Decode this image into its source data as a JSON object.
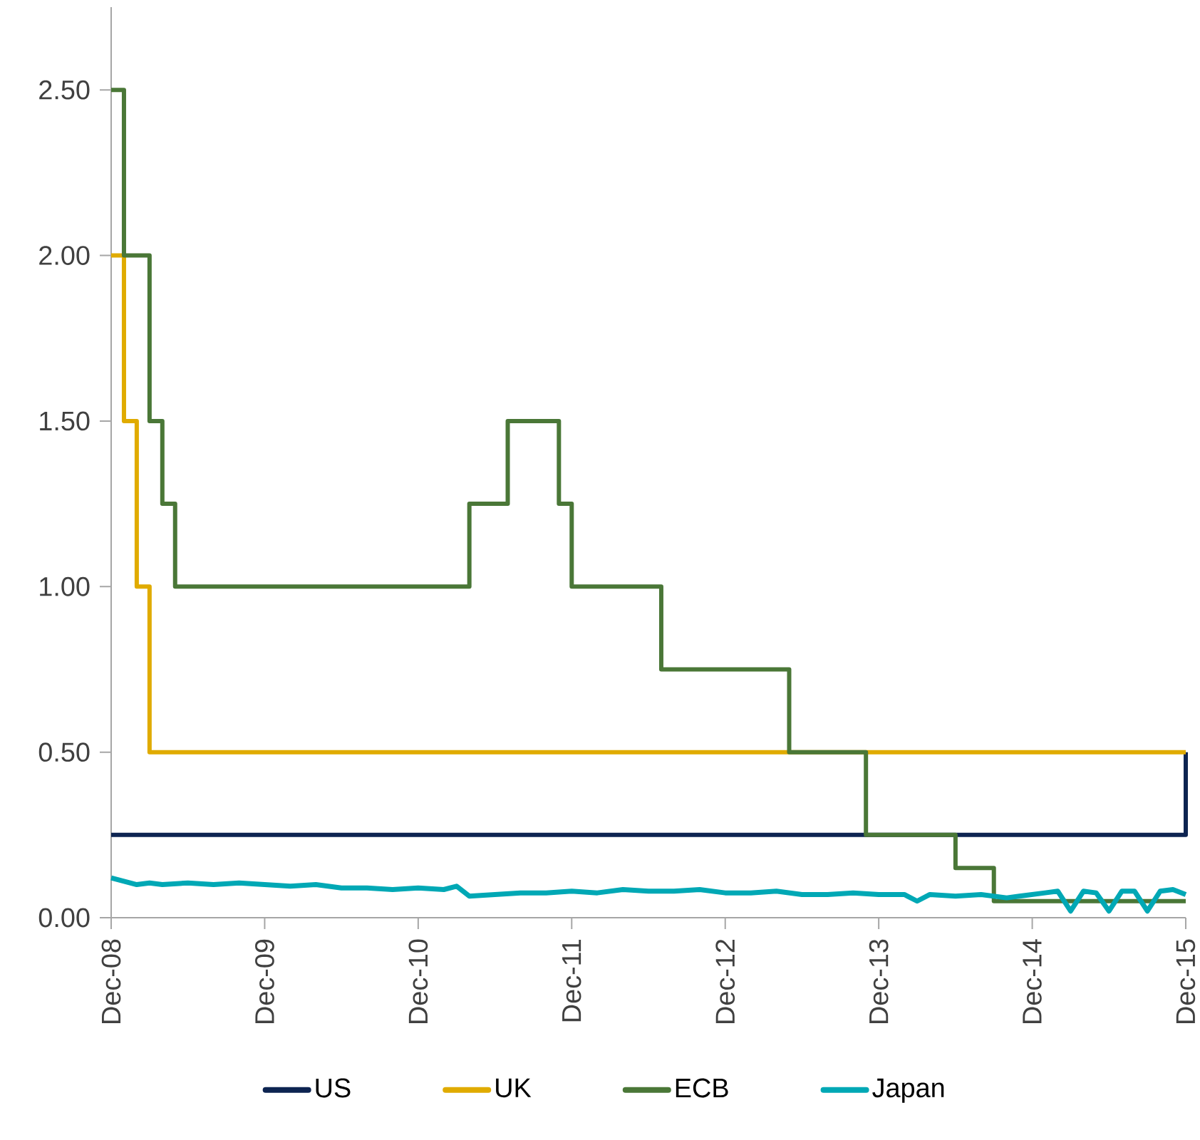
{
  "chart_data": {
    "type": "line",
    "xlim": [
      "2008-12",
      "2015-12"
    ],
    "xticks": [
      {
        "value": "2008-12",
        "label": "Dec-08"
      },
      {
        "value": "2009-12",
        "label": "Dec-09"
      },
      {
        "value": "2010-12",
        "label": "Dec-10"
      },
      {
        "value": "2011-12",
        "label": "Dec-11"
      },
      {
        "value": "2012-12",
        "label": "Dec-12"
      },
      {
        "value": "2013-12",
        "label": "Dec-13"
      },
      {
        "value": "2014-12",
        "label": "Dec-14"
      },
      {
        "value": "2015-12",
        "label": "Dec-15"
      }
    ],
    "ylim": [
      0,
      2.75
    ],
    "yticks": [
      {
        "value": 0,
        "label": "0.00"
      },
      {
        "value": 0.5,
        "label": "0.50"
      },
      {
        "value": 1.0,
        "label": "1.00"
      },
      {
        "value": 1.5,
        "label": "1.50"
      },
      {
        "value": 2.0,
        "label": "2.00"
      },
      {
        "value": 2.5,
        "label": "2.50"
      }
    ],
    "legend": "bottom",
    "marker": "none",
    "series": [
      {
        "name": "US",
        "color": "#0d2451",
        "type": "step",
        "x": [
          "2008-12",
          "2015-12"
        ],
        "values": [
          0.25,
          0.5
        ]
      },
      {
        "name": "UK",
        "color": "#e0ab00",
        "type": "step",
        "x": [
          "2008-12",
          "2009-01",
          "2009-02",
          "2009-03",
          "2015-12"
        ],
        "values": [
          2.0,
          1.5,
          1.0,
          0.5,
          0.5
        ]
      },
      {
        "name": "ECB",
        "color": "#4a7737",
        "type": "step",
        "x": [
          "2008-12",
          "2009-01",
          "2009-03",
          "2009-04",
          "2009-05",
          "2011-04",
          "2011-07",
          "2011-11",
          "2011-12",
          "2012-07",
          "2013-05",
          "2013-11",
          "2014-06",
          "2014-09",
          "2015-12"
        ],
        "values": [
          2.5,
          2.0,
          1.5,
          1.25,
          1.0,
          1.25,
          1.5,
          1.25,
          1.0,
          0.75,
          0.5,
          0.25,
          0.15,
          0.05,
          0.05
        ]
      },
      {
        "name": "Japan",
        "color": "#00a8b5",
        "x": [
          "2008-12",
          "2009-01",
          "2009-02",
          "2009-03",
          "2009-04",
          "2009-06",
          "2009-08",
          "2009-10",
          "2009-12",
          "2010-02",
          "2010-04",
          "2010-06",
          "2010-08",
          "2010-10",
          "2010-12",
          "2011-02",
          "2011-03",
          "2011-04",
          "2011-06",
          "2011-08",
          "2011-10",
          "2011-12",
          "2012-02",
          "2012-04",
          "2012-06",
          "2012-08",
          "2012-10",
          "2012-12",
          "2013-02",
          "2013-04",
          "2013-06",
          "2013-08",
          "2013-10",
          "2013-12",
          "2014-02",
          "2014-03",
          "2014-04",
          "2014-06",
          "2014-08",
          "2014-10",
          "2014-11",
          "2015-01",
          "2015-02",
          "2015-03",
          "2015-04",
          "2015-05",
          "2015-06",
          "2015-07",
          "2015-08",
          "2015-09",
          "2015-10",
          "2015-11",
          "2015-12"
        ],
        "values": [
          0.12,
          0.11,
          0.1,
          0.105,
          0.1,
          0.105,
          0.1,
          0.105,
          0.1,
          0.095,
          0.1,
          0.09,
          0.09,
          0.085,
          0.09,
          0.085,
          0.095,
          0.065,
          0.07,
          0.075,
          0.075,
          0.08,
          0.075,
          0.085,
          0.08,
          0.08,
          0.085,
          0.075,
          0.075,
          0.08,
          0.07,
          0.07,
          0.075,
          0.07,
          0.07,
          0.05,
          0.07,
          0.065,
          0.07,
          0.06,
          0.065,
          0.075,
          0.08,
          0.02,
          0.08,
          0.075,
          0.02,
          0.08,
          0.08,
          0.02,
          0.08,
          0.085,
          0.07
        ]
      }
    ]
  }
}
